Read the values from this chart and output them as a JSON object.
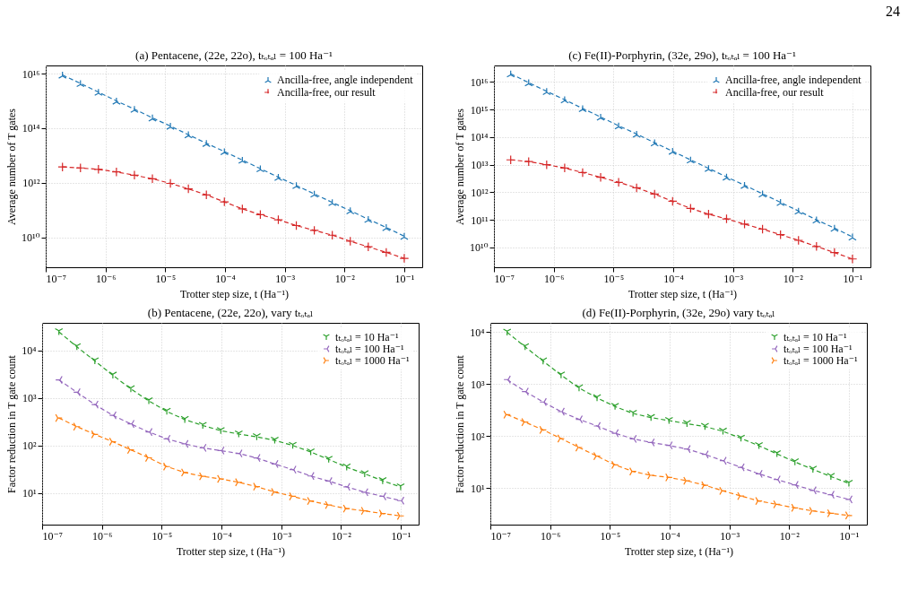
{
  "chart_data": [
    {
      "type": "line",
      "title": "(a) Pentacene, (22e, 22o), tₜₒₜₐₗ = 100 Ha⁻¹",
      "xlabel": "Trotter step size, t (Ha⁻¹)",
      "ylabel": "Average number of T gates",
      "x": [
        1.9073e-07,
        3.8147e-07,
        7.6294e-07,
        1.5259e-06,
        3.0518e-06,
        6.1035e-06,
        1.2207e-05,
        2.4414e-05,
        4.8828e-05,
        9.7656e-05,
        0.00019531,
        0.00039063,
        0.00078125,
        0.0015625,
        0.003125,
        0.00625,
        0.0125,
        0.025,
        0.05,
        0.1
      ],
      "series": [
        {
          "name": "Ancilla-free, angle independent",
          "color": "#1f77b4",
          "marker": "cross",
          "values": [
            9000000000000000.0,
            4400000000000000.0,
            2100000000000000.0,
            1000000000000000.0,
            500000000000000.0,
            240000000000000.0,
            120000000000000.0,
            58000000000000.0,
            28000000000000.0,
            14000000000000.0,
            6800000000000.0,
            3300000000000.0,
            1600000000000.0,
            800000000000.0,
            390000000000.0,
            190000000000.0,
            95000000000.0,
            46000000000.0,
            23000000000.0,
            11000000000.0
          ]
        },
        {
          "name": "Ancilla-free, our result",
          "color": "#d62728",
          "marker": "cross",
          "values": [
            3800000000000.0,
            3500000000000.0,
            3100000000000.0,
            2500000000000.0,
            1900000000000.0,
            1400000000000.0,
            950000000000.0,
            600000000000.0,
            360000000000.0,
            200000000000.0,
            110000000000.0,
            68000000000.0,
            44000000000.0,
            27000000000.0,
            18000000000.0,
            12000000000.0,
            7200000000.0,
            4500000000.0,
            2800000000.0,
            1700000000.0
          ]
        }
      ],
      "xlim": [
        1e-07,
        0.2
      ],
      "ylim": [
        800000000.0,
        2e+16
      ],
      "xticks": [
        {
          "value": 1e-07,
          "label": "10⁻⁷"
        },
        {
          "value": 1e-06,
          "label": "10⁻⁶"
        },
        {
          "value": 1e-05,
          "label": "10⁻⁵"
        },
        {
          "value": 0.0001,
          "label": "10⁻⁴"
        },
        {
          "value": 0.001,
          "label": "10⁻³"
        },
        {
          "value": 0.01,
          "label": "10⁻²"
        },
        {
          "value": 0.1,
          "label": "10⁻¹"
        }
      ],
      "yticks": [
        {
          "value": 10000000000.0,
          "label": "10¹⁰"
        },
        {
          "value": 1000000000000.0,
          "label": "10¹²"
        },
        {
          "value": 100000000000000.0,
          "label": "10¹⁴"
        },
        {
          "value": 1e+16,
          "label": "10¹⁶"
        }
      ],
      "log": "xy",
      "grid": true,
      "legend": "top right",
      "line_style": "dashed"
    },
    {
      "type": "line",
      "title": "(c) Fe(II)-Porphyrin, (32e, 29o), tₜₒₜₐₗ = 100 Ha⁻¹",
      "xlabel": "Trotter step size, t (Ha⁻¹)",
      "ylabel": "Average number of T gates",
      "annotations": [
        "24"
      ],
      "x": [
        1.9073e-07,
        3.8147e-07,
        7.6294e-07,
        1.5259e-06,
        3.0518e-06,
        6.1035e-06,
        1.2207e-05,
        2.4414e-05,
        4.8828e-05,
        9.7656e-05,
        0.00019531,
        0.00039063,
        0.00078125,
        0.0015625,
        0.003125,
        0.00625,
        0.0125,
        0.025,
        0.05,
        0.1
      ],
      "series": [
        {
          "name": "Ancilla-free, angle independent",
          "color": "#1f77b4",
          "marker": "cross",
          "values": [
            2e+16,
            9500000000000000.0,
            4600000000000000.0,
            2300000000000000.0,
            1100000000000000.0,
            540000000000000.0,
            260000000000000.0,
            130000000000000.0,
            63000000000000.0,
            31000000000000.0,
            15000000000000.0,
            7400000000000.0,
            3600000000000.0,
            1800000000000.0,
            880000000000.0,
            430000000000.0,
            210000000000.0,
            100000000000.0,
            50000000000.0,
            24000000000.0
          ]
        },
        {
          "name": "Ancilla-free, our result",
          "color": "#d62728",
          "marker": "cross",
          "values": [
            15000000000000.0,
            13000000000000.0,
            10000000000000.0,
            7600000000000.0,
            5200000000000.0,
            3500000000000.0,
            2300000000000.0,
            1450000000000.0,
            860000000000.0,
            470000000000.0,
            260000000000.0,
            160000000000.0,
            108000000000.0,
            70000000000.0,
            46000000000.0,
            29000000000.0,
            18000000000.0,
            10800000000.0,
            6500000000.0,
            3800000000.0
          ]
        }
      ],
      "xlim": [
        1e-07,
        0.2
      ],
      "ylim": [
        1900000000.0,
        4e+16
      ],
      "xticks": [
        {
          "value": 1e-07,
          "label": "10⁻⁷"
        },
        {
          "value": 1e-06,
          "label": "10⁻⁶"
        },
        {
          "value": 1e-05,
          "label": "10⁻⁵"
        },
        {
          "value": 0.0001,
          "label": "10⁻⁴"
        },
        {
          "value": 0.001,
          "label": "10⁻³"
        },
        {
          "value": 0.01,
          "label": "10⁻²"
        },
        {
          "value": 0.1,
          "label": "10⁻¹"
        }
      ],
      "yticks": [
        {
          "value": 10000000000.0,
          "label": "10¹⁰"
        },
        {
          "value": 100000000000.0,
          "label": "10¹¹"
        },
        {
          "value": 1000000000000.0,
          "label": "10¹²"
        },
        {
          "value": 10000000000000.0,
          "label": "10¹³"
        },
        {
          "value": 100000000000000.0,
          "label": "10¹⁴"
        },
        {
          "value": 1000000000000000.0,
          "label": "10¹⁵"
        },
        {
          "value": 1e+16,
          "label": "10¹⁶"
        }
      ],
      "log": "xy",
      "grid": true,
      "legend": "top right",
      "line_style": "dashed"
    },
    {
      "type": "line",
      "title": "(b) Pentacene, (22e, 22o), vary tₜₒₜₐₗ",
      "xlabel": "Trotter step size, t (Ha⁻¹)",
      "ylabel": "Factor reduction in T gate count",
      "x": [
        1.9073e-07,
        3.8147e-07,
        7.6294e-07,
        1.5259e-06,
        3.0518e-06,
        6.1035e-06,
        1.2207e-05,
        2.4414e-05,
        4.8828e-05,
        9.7656e-05,
        0.00019531,
        0.00039063,
        0.00078125,
        0.0015625,
        0.003125,
        0.00625,
        0.0125,
        0.025,
        0.05,
        0.1
      ],
      "series": [
        {
          "name": "tₜₒₜₐₗ = 10 Ha⁻¹",
          "color": "#2ca02c",
          "marker": "cross",
          "values": [
            24600,
            11900,
            6000,
            3000,
            1550,
            865,
            520,
            350,
            263,
            205,
            174,
            152,
            128,
            100,
            73,
            51,
            35,
            25.3,
            18.1,
            13.4
          ]
        },
        {
          "name": "tₜₒₜₐₗ = 100 Ha⁻¹",
          "color": "#9467bd",
          "marker": "cross",
          "values": [
            2400,
            1320,
            727,
            430,
            284,
            192,
            138,
            108,
            89,
            78,
            68,
            54.5,
            40.7,
            31,
            22.8,
            17.8,
            13.5,
            10.4,
            8.5,
            6.9
          ]
        },
        {
          "name": "tₜₒₜₐₗ = 1000 Ha⁻¹",
          "color": "#ff7f0e",
          "marker": "cross",
          "values": [
            378,
            249,
            171,
            120,
            81,
            55,
            36,
            27,
            22.4,
            19.8,
            16.8,
            13.6,
            10.5,
            8.5,
            6.8,
            5.6,
            4.7,
            4.2,
            3.7,
            3.3
          ]
        }
      ],
      "xlim": [
        1e-07,
        0.2
      ],
      "ylim": [
        2.16,
        38000
      ],
      "xticks": [
        {
          "value": 1e-07,
          "label": "10⁻⁷"
        },
        {
          "value": 1e-06,
          "label": "10⁻⁶"
        },
        {
          "value": 1e-05,
          "label": "10⁻⁵"
        },
        {
          "value": 0.0001,
          "label": "10⁻⁴"
        },
        {
          "value": 0.001,
          "label": "10⁻³"
        },
        {
          "value": 0.01,
          "label": "10⁻²"
        },
        {
          "value": 0.1,
          "label": "10⁻¹"
        }
      ],
      "yticks": [
        {
          "value": 10,
          "label": "10¹"
        },
        {
          "value": 100,
          "label": "10²"
        },
        {
          "value": 1000,
          "label": "10³"
        },
        {
          "value": 10000,
          "label": "10⁴"
        }
      ],
      "log": "xy",
      "grid": true,
      "legend": "top right",
      "line_style": "dashed"
    },
    {
      "type": "line",
      "title": "(d) Fe(II)-Porphyrin, (32e, 29o) vary tₜₒₜₐₗ",
      "xlabel": "Trotter step size, t (Ha⁻¹)",
      "ylabel": "Factor reduction in T gate count",
      "x": [
        1.9073e-07,
        3.8147e-07,
        7.6294e-07,
        1.5259e-06,
        3.0518e-06,
        6.1035e-06,
        1.2207e-05,
        2.4414e-05,
        4.8828e-05,
        9.7656e-05,
        0.00019531,
        0.00039063,
        0.00078125,
        0.0015625,
        0.003125,
        0.00625,
        0.0125,
        0.025,
        0.05,
        0.1
      ],
      "series": [
        {
          "name": "tₜₒₜₐₗ = 10 Ha⁻¹",
          "color": "#2ca02c",
          "marker": "cross",
          "values": [
            9900,
            5200,
            2770,
            1490,
            842,
            544,
            371,
            273,
            227,
            199,
            174,
            153,
            124,
            91,
            65.5,
            45.8,
            32,
            23,
            16.8,
            12.4
          ]
        },
        {
          "name": "tₜₒₜₐₗ = 100 Ha⁻¹",
          "color": "#9467bd",
          "marker": "cross",
          "values": [
            1220,
            720,
            453,
            296,
            210,
            157,
            114,
            88.8,
            75.7,
            66.4,
            56.6,
            44.6,
            33.8,
            25.2,
            18.9,
            14.7,
            11.6,
            9.1,
            7.5,
            6.1
          ]
        },
        {
          "name": "tₜₒₜₐₗ = 1000 Ha⁻¹",
          "color": "#ff7f0e",
          "marker": "cross",
          "values": [
            259,
            186,
            132,
            90,
            60.5,
            41.3,
            28.1,
            21,
            17.7,
            16.1,
            13.9,
            11.4,
            8.9,
            7.1,
            5.7,
            4.9,
            4.2,
            3.66,
            3.3,
            3.0
          ]
        }
      ],
      "xlim": [
        1e-07,
        0.2
      ],
      "ylim": [
        2,
        15000
      ],
      "xticks": [
        {
          "value": 1e-07,
          "label": "10⁻⁷"
        },
        {
          "value": 1e-06,
          "label": "10⁻⁶"
        },
        {
          "value": 1e-05,
          "label": "10⁻⁵"
        },
        {
          "value": 0.0001,
          "label": "10⁻⁴"
        },
        {
          "value": 0.001,
          "label": "10⁻³"
        },
        {
          "value": 0.01,
          "label": "10⁻²"
        },
        {
          "value": 0.1,
          "label": "10⁻¹"
        }
      ],
      "yticks": [
        {
          "value": 10,
          "label": "10¹"
        },
        {
          "value": 100,
          "label": "10²"
        },
        {
          "value": 1000,
          "label": "10³"
        },
        {
          "value": 10000,
          "label": "10⁴"
        }
      ],
      "log": "xy",
      "grid": true,
      "legend": "top right",
      "line_style": "dashed"
    }
  ]
}
